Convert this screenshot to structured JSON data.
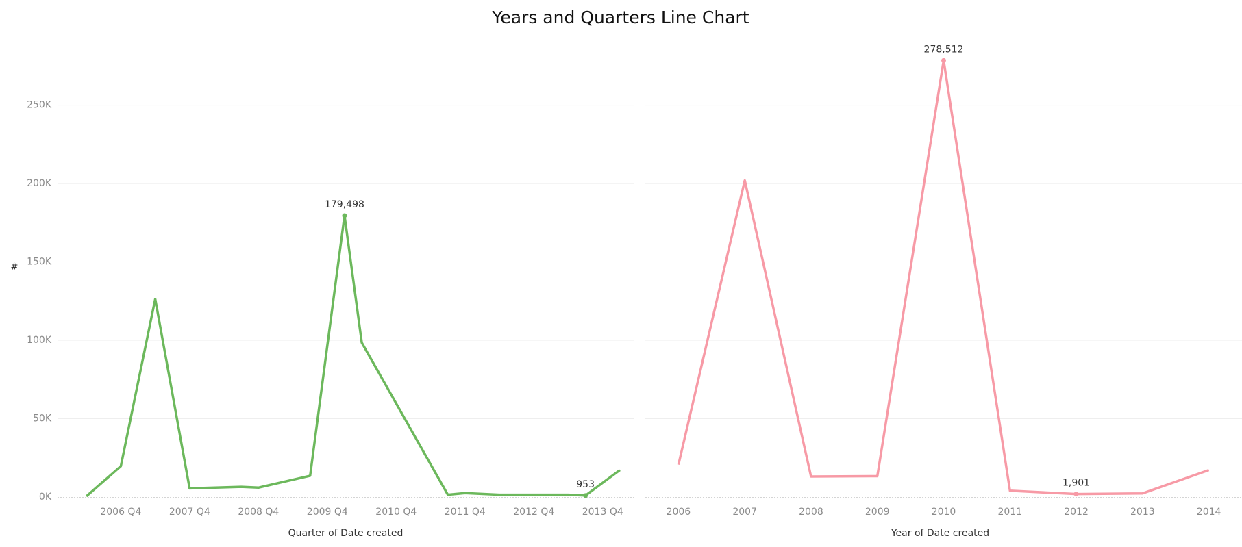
{
  "chart_data": [
    {
      "type": "line",
      "title": "Years and Quarters Line Chart",
      "y_label": "#",
      "x_label": "Quarter of Date created",
      "x": [
        "2006 Q2",
        "2006 Q4",
        "2007 Q2",
        "2007 Q4",
        "2008 Q3",
        "2008 Q4",
        "2009 Q3",
        "2010 Q1",
        "2010 Q2",
        "2011 Q3",
        "2011 Q4",
        "2012 Q2",
        "2013 Q2",
        "2013 Q3",
        "2014 Q1"
      ],
      "values": [
        500,
        19700,
        126300,
        5500,
        6500,
        6000,
        13600,
        179498,
        98500,
        1500,
        2500,
        1500,
        1500,
        953,
        17200
      ],
      "value_labels": [
        null,
        null,
        null,
        null,
        null,
        null,
        null,
        "179,498",
        null,
        null,
        null,
        null,
        null,
        "953",
        null
      ],
      "color": "#6cb85c",
      "xlim": [
        "2006 Q1",
        "2014 Q2"
      ],
      "xticks": [
        "2006 Q4",
        "2007 Q4",
        "2008 Q4",
        "2009 Q4",
        "2010 Q4",
        "2011 Q4",
        "2012 Q4",
        "2013 Q4"
      ],
      "ylim": [
        0,
        290000
      ],
      "yticks": [
        {
          "value": 0,
          "label": "0K"
        },
        {
          "value": 50000,
          "label": "50K"
        },
        {
          "value": 100000,
          "label": "100K"
        },
        {
          "value": 150000,
          "label": "150K"
        },
        {
          "value": 200000,
          "label": "200K"
        },
        {
          "value": 250000,
          "label": "250K"
        }
      ],
      "grid": true
    },
    {
      "type": "line",
      "x_label": "Year of Date created",
      "x": [
        2006,
        2007,
        2008,
        2009,
        2010,
        2011,
        2012,
        2013,
        2014
      ],
      "values": [
        20700,
        202000,
        13100,
        13300,
        278512,
        4000,
        1901,
        2300,
        17200
      ],
      "value_labels": [
        null,
        null,
        null,
        null,
        "278,512",
        null,
        "1,901",
        null,
        null
      ],
      "color": "#f79aa6",
      "xlim": [
        2005.5,
        2014.5
      ],
      "xticks": [
        2006,
        2007,
        2008,
        2009,
        2010,
        2011,
        2012,
        2013,
        2014
      ],
      "ylim": [
        0,
        290000
      ],
      "yticks": [
        0,
        50000,
        100000,
        150000,
        200000,
        250000
      ],
      "grid": true
    }
  ]
}
